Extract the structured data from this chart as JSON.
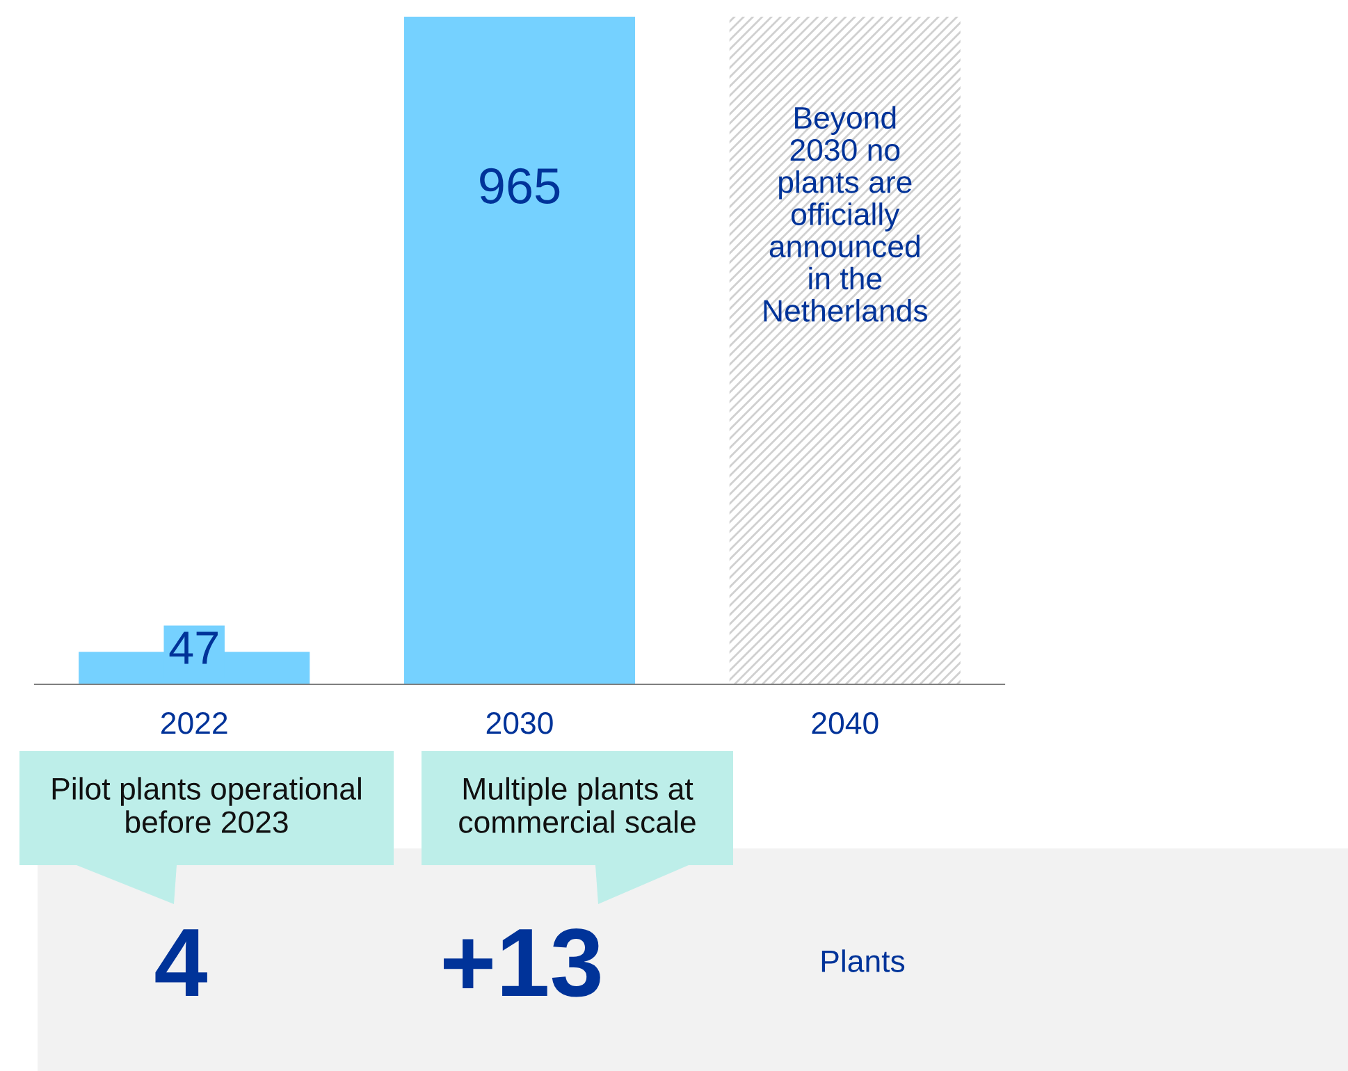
{
  "chart_data": {
    "type": "bar",
    "categories": [
      "2022",
      "2030",
      "2040"
    ],
    "values": [
      47,
      965,
      null
    ],
    "color": "#75d1ff",
    "ylim": [
      0,
      965
    ],
    "data_labels": true,
    "grid": false,
    "bands": [
      {
        "axis": "x",
        "from": "2040",
        "to": "2040",
        "label": "Beyond\n2030 no\nplants are\nofficially\nannounced\nin the\nNetherlands",
        "color": "#d0d0d0"
      }
    ],
    "annotations": [
      "Pilot plants operational\nbefore 2023",
      "Multiple plants at\ncommercial scale",
      "4",
      "+13",
      "Plants"
    ]
  }
}
